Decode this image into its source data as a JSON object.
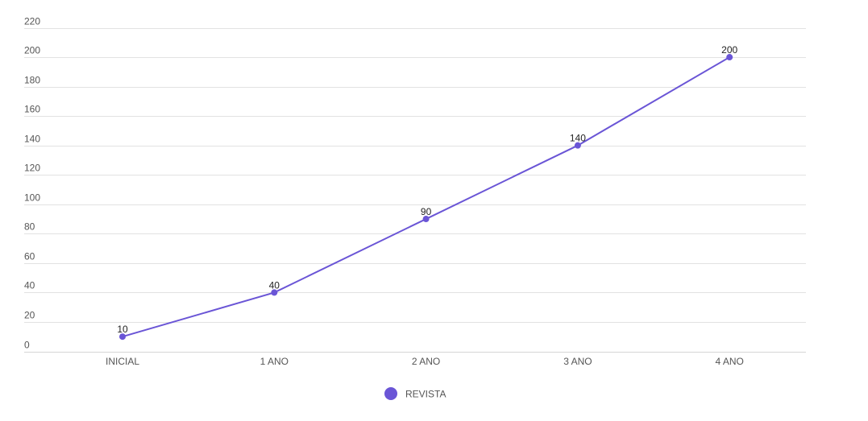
{
  "chart_data": {
    "type": "line",
    "categories": [
      "INICIAL",
      "1 ANO",
      "2 ANO",
      "3 ANO",
      "4 ANO"
    ],
    "series": [
      {
        "name": "REVISTA",
        "values": [
          10,
          40,
          90,
          140,
          200
        ],
        "color": "#6a55d6"
      }
    ],
    "y_ticks": [
      0,
      20,
      40,
      60,
      80,
      100,
      120,
      140,
      160,
      180,
      200,
      220
    ],
    "ylim": [
      0,
      220
    ],
    "grid": true,
    "legend_position": "bottom-center",
    "data_labels": true
  }
}
